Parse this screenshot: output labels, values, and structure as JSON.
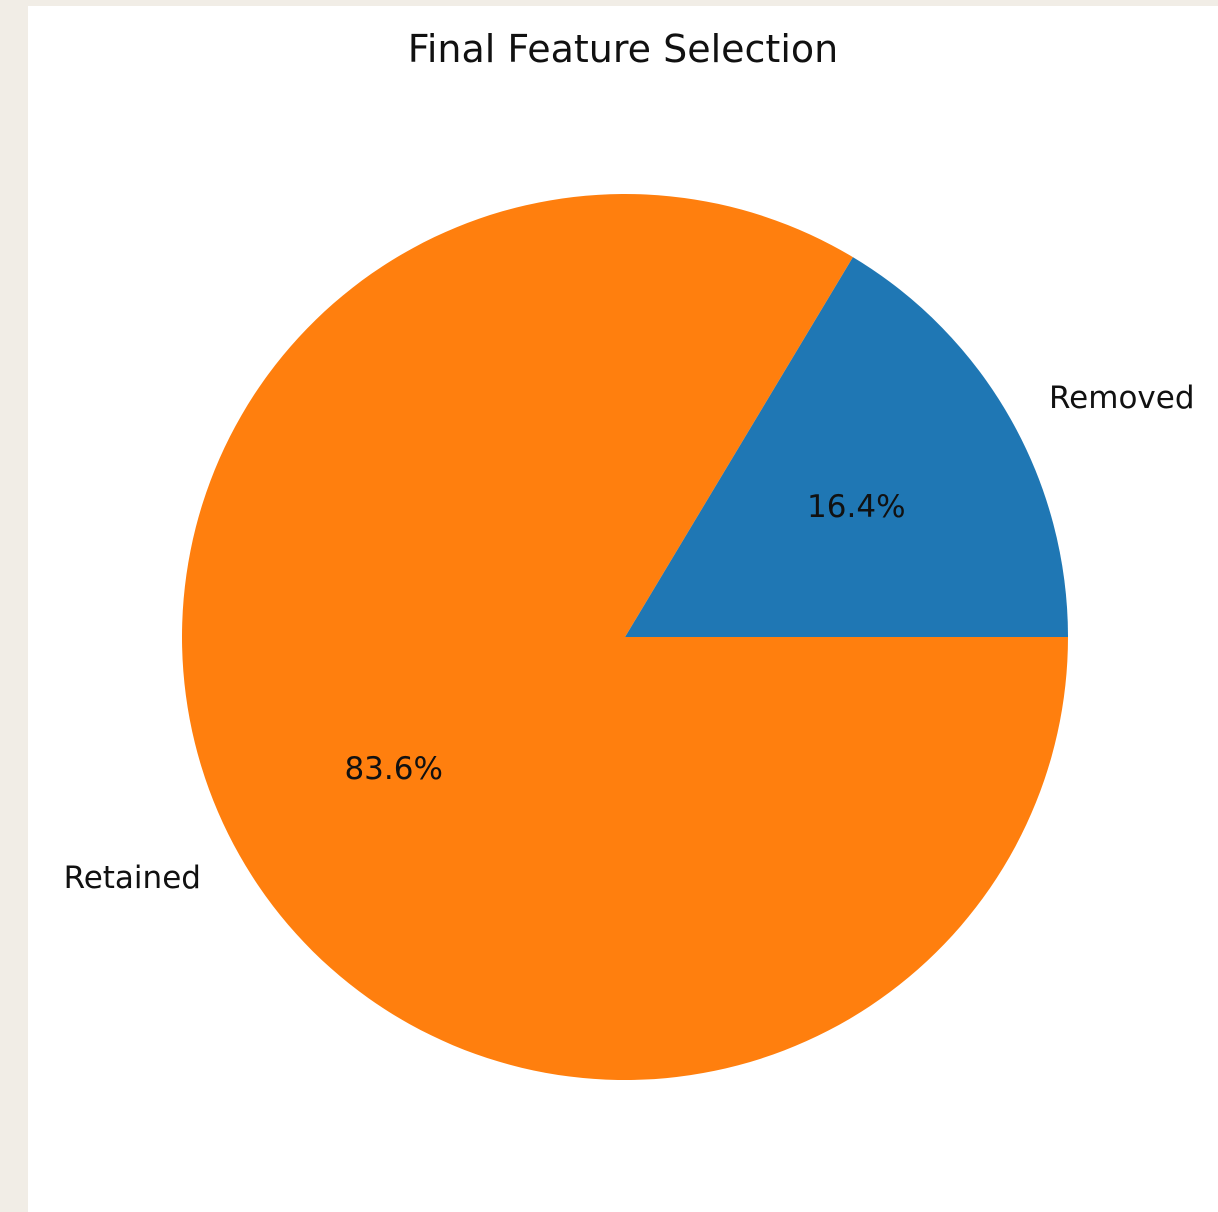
{
  "chart_data": {
    "type": "pie",
    "title": "Final Feature Selection",
    "categories": [
      "Removed",
      "Retained"
    ],
    "values": [
      16.4,
      83.6
    ],
    "value_labels": [
      "16.4%",
      "83.6%"
    ],
    "colors": [
      "#1f77b4",
      "#ff7f0e"
    ],
    "start_angle_deg": 0,
    "direction": "counterclockwise"
  }
}
